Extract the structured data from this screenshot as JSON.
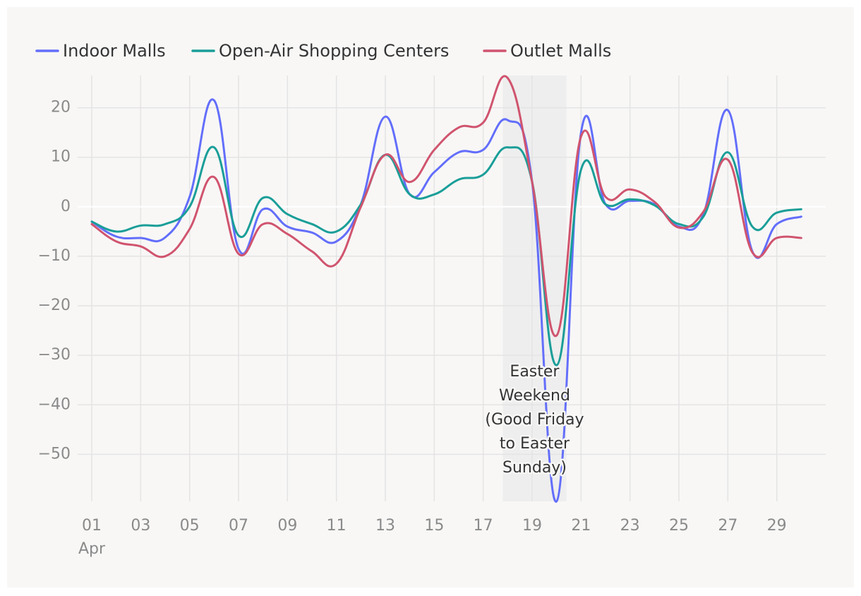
{
  "chart_data": {
    "type": "line",
    "title": "",
    "xlabel": "",
    "ylabel": "",
    "x": [
      1,
      2,
      3,
      4,
      5,
      6,
      7,
      8,
      9,
      10,
      11,
      12,
      13,
      14,
      15,
      16,
      17,
      18,
      19,
      20,
      21,
      22,
      23,
      24,
      25,
      26,
      27,
      28,
      29,
      30
    ],
    "x_tick_values": [
      1,
      3,
      5,
      7,
      9,
      11,
      13,
      15,
      17,
      19,
      21,
      23,
      25,
      27,
      29
    ],
    "x_tick_labels": [
      "01",
      "03",
      "05",
      "07",
      "09",
      "11",
      "13",
      "15",
      "17",
      "19",
      "21",
      "23",
      "25",
      "27",
      "29"
    ],
    "x_sub_label": "Apr",
    "xlim": [
      1,
      31
    ],
    "y_tick_values": [
      20,
      10,
      0,
      -10,
      -20,
      -30,
      -40,
      -50
    ],
    "y_tick_labels": [
      "20",
      "10",
      "0",
      "−10",
      "−20",
      "−30",
      "−40",
      "−50"
    ],
    "ylim": [
      -59.5,
      26.5
    ],
    "grid": true,
    "legend_position": "top-left",
    "series": [
      {
        "name": "Indoor Malls",
        "color": "#636efa",
        "values": [
          -3,
          -6,
          -6.3,
          -6.2,
          2,
          21.5,
          -8.5,
          -0.5,
          -4,
          -5.2,
          -7,
          0.5,
          18.2,
          2.5,
          7,
          11,
          11.5,
          17.5,
          5,
          -59.5,
          15,
          0.5,
          1.2,
          0.5,
          -4,
          -1.5,
          19.5,
          -9,
          -3.5,
          -2
        ]
      },
      {
        "name": "Open-Air Shopping Centers",
        "color": "#1a9e98",
        "values": [
          -3,
          -5,
          -3.8,
          -3.5,
          0,
          12,
          -5.8,
          1.8,
          -1.5,
          -3.5,
          -5,
          0.5,
          10.5,
          2.5,
          2.5,
          5.5,
          6.5,
          12,
          5,
          -32,
          7.5,
          0.5,
          1.5,
          0.3,
          -3.5,
          -2,
          11,
          -4,
          -1.2,
          -0.5
        ]
      },
      {
        "name": "Outlet Malls",
        "color": "#d0546e",
        "values": [
          -3.5,
          -7,
          -8,
          -10,
          -4.5,
          6,
          -9.5,
          -3.5,
          -5.5,
          -9,
          -11.5,
          0,
          10.5,
          5,
          11.5,
          16,
          17,
          26,
          5,
          -26,
          14.2,
          2,
          3.5,
          1,
          -4.2,
          -1,
          9.5,
          -9.2,
          -6.3,
          -6.3
        ]
      }
    ],
    "shaded_region": {
      "x_start": 17.8,
      "x_end": 20.4,
      "color": "#eeeeee"
    },
    "annotation": {
      "lines": [
        "Easter",
        "Weekend",
        "(Good Friday",
        "to Easter",
        "Sunday)"
      ],
      "x": 19.1,
      "y": -33
    }
  }
}
